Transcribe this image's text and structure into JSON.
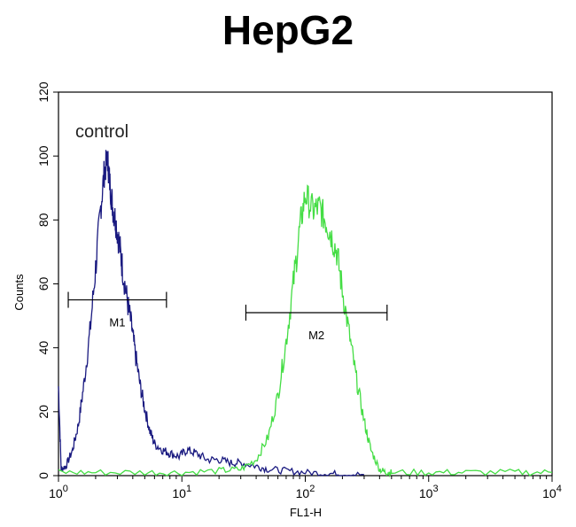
{
  "chart_data": {
    "type": "line",
    "title": "HepG2",
    "xlabel": "FL1-H",
    "ylabel": "Counts",
    "xscale": "log",
    "xlim": [
      1,
      10000
    ],
    "ylim": [
      0,
      120
    ],
    "x_ticks": [
      1,
      10,
      100,
      1000,
      10000
    ],
    "x_tick_labels": [
      {
        "base": "10",
        "exp": "0"
      },
      {
        "base": "10",
        "exp": "1"
      },
      {
        "base": "10",
        "exp": "2"
      },
      {
        "base": "10",
        "exp": "3"
      },
      {
        "base": "10",
        "exp": "4"
      }
    ],
    "y_ticks": [
      0,
      20,
      40,
      60,
      80,
      100,
      120
    ],
    "y_tick_labels": [
      "0",
      "20",
      "40",
      "60",
      "80",
      "100",
      "120"
    ],
    "annotation": "control",
    "grid": false,
    "legend": "none",
    "series": [
      {
        "color": "#1a1a80",
        "x": [
          1.0,
          1.05,
          1.15,
          1.3,
          1.45,
          1.6,
          1.8,
          2.0,
          2.2,
          2.35,
          2.5,
          2.6,
          2.75,
          2.9,
          3.1,
          3.3,
          3.6,
          3.9,
          4.2,
          4.6,
          5.0,
          5.5,
          6.0,
          7.0,
          8.0,
          9.5,
          11,
          13,
          16,
          20,
          25,
          30,
          40,
          50,
          70,
          100,
          150,
          200,
          300
        ],
        "y": [
          28,
          2,
          3,
          8,
          16,
          28,
          45,
          65,
          84,
          95,
          99,
          92,
          84,
          80,
          73,
          65,
          55,
          47,
          38,
          28,
          21,
          14,
          10,
          8,
          7,
          6,
          8,
          7,
          5,
          5,
          4,
          4,
          3,
          2,
          1.5,
          1,
          0.7,
          0.5,
          0.3
        ]
      },
      {
        "color": "#44dd44",
        "x": [
          1,
          2,
          5,
          10,
          20,
          30,
          40,
          50,
          60,
          70,
          80,
          90,
          100,
          115,
          130,
          145,
          160,
          180,
          200,
          230,
          260,
          300,
          340,
          400,
          450,
          500,
          1000,
          2000,
          5000,
          10000
        ],
        "y": [
          1,
          1,
          1,
          1,
          1.5,
          2,
          5,
          12,
          25,
          42,
          60,
          77,
          88,
          83,
          84,
          80,
          76,
          70,
          58,
          43,
          30,
          17,
          8,
          2,
          1,
          1,
          1,
          1,
          1,
          1
        ]
      }
    ],
    "markers": [
      {
        "label": "M1",
        "x_start": 1.2,
        "x_end": 7.5,
        "y": 55
      },
      {
        "label": "M2",
        "x_start": 33,
        "x_end": 460,
        "y": 51
      }
    ]
  }
}
